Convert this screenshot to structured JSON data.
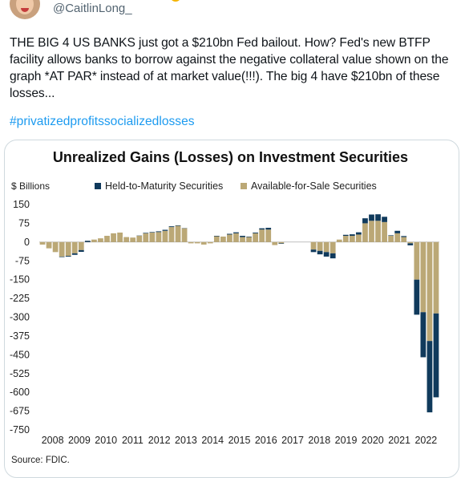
{
  "tweet": {
    "handle": "@CaitlinLong_",
    "text": "THE BIG 4 US BANKS just got a $210bn Fed bailout. How? Fed's new BTFP facility allows banks to borrow against the negative collateral value shown on the graph *AT PAR* instead of at market value(!!!). The big 4 have $210bn of these losses...",
    "hashtag": "#privatizedprofitssocializedlosses"
  },
  "chart_data": {
    "type": "bar",
    "stacked": true,
    "title": "Unrealized Gains (Losses) on Investment Securities",
    "unit_label": "$ Billions",
    "source": "Source: FDIC.",
    "ylim": [
      -750,
      150
    ],
    "y_ticks": [
      150,
      75,
      0,
      -75,
      -150,
      -225,
      -300,
      -375,
      -450,
      -525,
      -600,
      -675,
      -750
    ],
    "year_labels": [
      "2008",
      "2009",
      "2010",
      "2011",
      "2012",
      "2013",
      "2014",
      "2015",
      "2016",
      "2017",
      "2018",
      "2019",
      "2020",
      "2021",
      "2022"
    ],
    "legend": [
      {
        "name": "Held-to-Maturity Securities",
        "color": "#103a5c"
      },
      {
        "name": "Available-for-Sale Securities",
        "color": "#bba876"
      }
    ],
    "series": [
      {
        "name": "Held-to-Maturity Securities",
        "color": "#103a5c",
        "values": [
          0,
          0,
          0,
          -2,
          -3,
          -6,
          -7,
          -5,
          0,
          0,
          0,
          0,
          0,
          0,
          0,
          1,
          2,
          2,
          3,
          4,
          3,
          2,
          1,
          0,
          0,
          0,
          0,
          -2,
          0,
          3,
          4,
          5,
          2,
          3,
          5,
          7,
          0,
          -2,
          0,
          0,
          0,
          0,
          -10,
          -14,
          -18,
          -20,
          0,
          4,
          6,
          9,
          20,
          25,
          26,
          21,
          2,
          10,
          4,
          -8,
          -140,
          -180,
          -285,
          -335
        ]
      },
      {
        "name": "Available-for-Sale Securities",
        "color": "#bba876",
        "values": [
          -10,
          -25,
          -40,
          -58,
          -55,
          -45,
          -32,
          5,
          10,
          15,
          25,
          35,
          38,
          20,
          18,
          25,
          35,
          38,
          40,
          45,
          60,
          65,
          55,
          -5,
          -5,
          -10,
          -5,
          25,
          22,
          30,
          35,
          20,
          20,
          35,
          50,
          50,
          -12,
          -5,
          0,
          0,
          0,
          0,
          -30,
          -35,
          -40,
          -45,
          10,
          25,
          25,
          30,
          75,
          85,
          85,
          80,
          25,
          35,
          20,
          -5,
          -150,
          -280,
          -395,
          -285
        ]
      }
    ]
  }
}
